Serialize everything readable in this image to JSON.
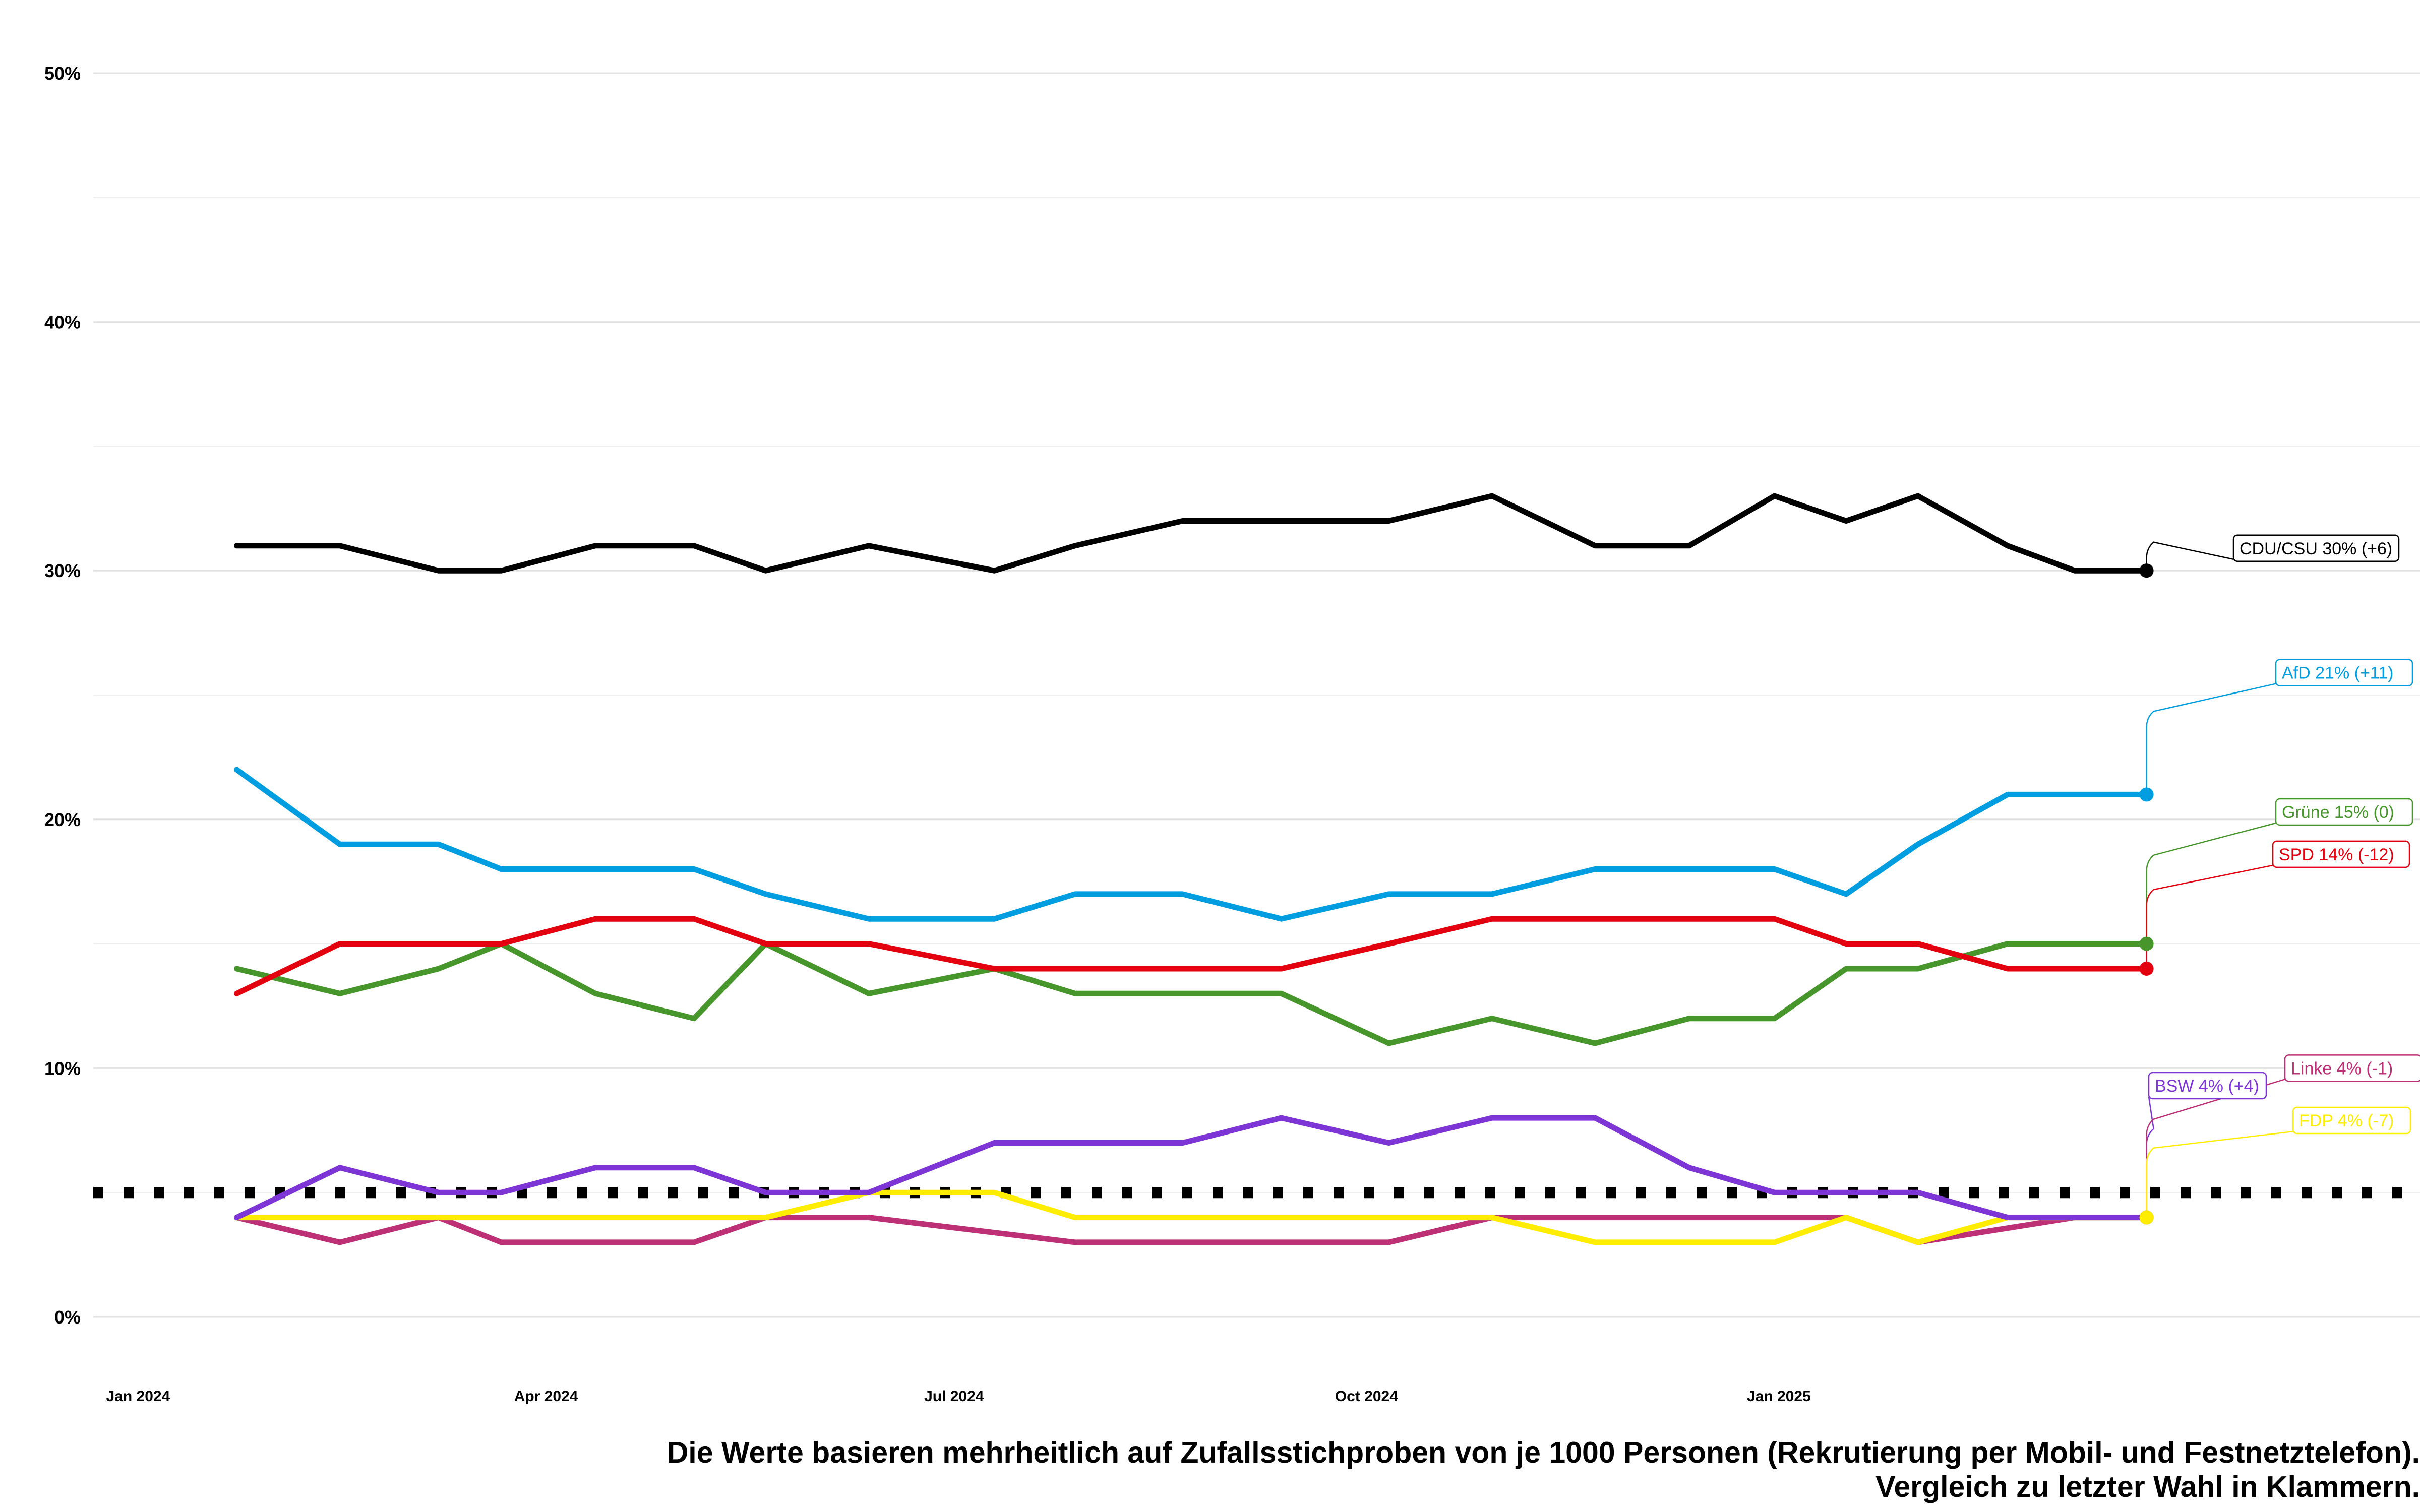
{
  "chart_data": {
    "type": "line",
    "x": [
      "2024-01-23",
      "2024-02-15",
      "2024-03-08",
      "2024-03-22",
      "2024-04-12",
      "2024-05-04",
      "2024-05-20",
      "2024-06-12",
      "2024-07-10",
      "2024-07-28",
      "2024-08-21",
      "2024-09-12",
      "2024-10-06",
      "2024-10-29",
      "2024-11-21",
      "2024-12-12",
      "2024-12-31",
      "2025-01-16",
      "2025-02-01",
      "2025-02-21",
      "2025-03-08",
      "2025-03-24"
    ],
    "series": [
      {
        "name": "CDU/CSU",
        "color": "#000000",
        "x": [
          "2024-01-23",
          "2024-02-15",
          "2024-03-08",
          "2024-03-22",
          "2024-04-12",
          "2024-05-04",
          "2024-05-20",
          "2024-06-12",
          "2024-07-10",
          "2024-07-28",
          "2024-08-21",
          "2024-09-12",
          "2024-10-06",
          "2024-10-29",
          "2024-11-21",
          "2024-12-12",
          "2024-12-31",
          "2025-01-16",
          "2025-02-01",
          "2025-02-21",
          "2025-03-08",
          "2025-03-24"
        ],
        "values": [
          31,
          31,
          30,
          30,
          31,
          31,
          30,
          31,
          30,
          31,
          32,
          32,
          32,
          33,
          31,
          31,
          33,
          32,
          33,
          31,
          30,
          30
        ]
      },
      {
        "name": "AfD",
        "color": "#009EE0",
        "x": [
          "2024-01-23",
          "2024-02-15",
          "2024-03-08",
          "2024-03-22",
          "2024-04-12",
          "2024-05-04",
          "2024-05-20",
          "2024-06-12",
          "2024-07-10",
          "2024-07-28",
          "2024-08-21",
          "2024-09-12",
          "2024-10-06",
          "2024-10-29",
          "2024-11-21",
          "2024-12-12",
          "2024-12-31",
          "2025-01-16",
          "2025-02-01",
          "2025-02-21",
          "2025-03-08",
          "2025-03-24"
        ],
        "values": [
          22,
          19,
          19,
          18,
          18,
          18,
          17,
          16,
          16,
          17,
          17,
          16,
          17,
          17,
          18,
          18,
          18,
          17,
          19,
          21,
          21,
          21
        ]
      },
      {
        "name": "Grüne",
        "color": "#46962B",
        "x": [
          "2024-01-23",
          "2024-02-15",
          "2024-03-08",
          "2024-03-22",
          "2024-04-12",
          "2024-05-04",
          "2024-05-20",
          "2024-06-12",
          "2024-07-10",
          "2024-07-28",
          "2024-08-21",
          "2024-09-12",
          "2024-10-06",
          "2024-10-29",
          "2024-11-21",
          "2024-12-12",
          "2024-12-31",
          "2025-01-16",
          "2025-02-01",
          "2025-02-21",
          "2025-03-08",
          "2025-03-24"
        ],
        "values": [
          14,
          13,
          14,
          15,
          13,
          12,
          15,
          13,
          14,
          13,
          13,
          13,
          11,
          12,
          11,
          12,
          12,
          14,
          14,
          15,
          15,
          15
        ]
      },
      {
        "name": "SPD",
        "color": "#E3000F",
        "x": [
          "2024-01-23",
          "2024-02-15",
          "2024-03-08",
          "2024-03-22",
          "2024-04-12",
          "2024-05-04",
          "2024-05-20",
          "2024-06-12",
          "2024-07-10",
          "2024-07-28",
          "2024-08-21",
          "2024-09-12",
          "2024-10-06",
          "2024-10-29",
          "2024-11-21",
          "2024-12-12",
          "2024-12-31",
          "2025-01-16",
          "2025-02-01",
          "2025-02-21",
          "2025-03-08",
          "2025-03-24"
        ],
        "values": [
          13,
          15,
          15,
          15,
          16,
          16,
          15,
          15,
          14,
          14,
          14,
          14,
          15,
          16,
          16,
          16,
          16,
          15,
          15,
          14,
          14,
          14
        ]
      },
      {
        "name": "BSW",
        "color": "#7D35D6",
        "x": [
          "2024-01-23",
          "2024-02-15",
          "2024-03-08",
          "2024-03-22",
          "2024-04-12",
          "2024-05-04",
          "2024-05-20",
          "2024-06-12",
          "2024-07-10",
          "2024-07-28",
          "2024-08-21",
          "2024-09-12",
          "2024-10-06",
          "2024-10-29",
          "2024-11-21",
          "2024-12-12",
          "2024-12-31",
          "2025-01-16",
          "2025-02-01",
          "2025-02-21",
          "2025-03-08",
          "2025-03-24"
        ],
        "values": [
          4,
          6,
          5,
          5,
          6,
          6,
          5,
          5,
          7,
          7,
          7,
          8,
          7,
          8,
          8,
          6,
          5,
          5,
          5,
          4,
          4,
          4
        ]
      },
      {
        "name": "Linke",
        "color": "#BE3075",
        "x": [
          "2024-01-23",
          "2024-02-15",
          "2024-03-08",
          "2024-03-22",
          "2024-04-12",
          "2024-05-04",
          "2024-05-20",
          "2024-06-12",
          "2024-07-28",
          "2024-08-21",
          "2024-09-12",
          "2024-10-06",
          "2024-10-29",
          "2024-11-21",
          "2024-12-12",
          "2024-12-31",
          "2025-01-16",
          "2025-02-01",
          "2025-03-08",
          "2025-03-24"
        ],
        "values": [
          4,
          3,
          4,
          3,
          3,
          3,
          4,
          4,
          3,
          3,
          3,
          3,
          4,
          4,
          4,
          4,
          4,
          3,
          4,
          4
        ]
      },
      {
        "name": "FDP",
        "color": "#FFED00",
        "x": [
          "2024-01-23",
          "2024-02-15",
          "2024-03-08",
          "2024-03-22",
          "2024-04-12",
          "2024-05-04",
          "2024-05-20",
          "2024-06-12",
          "2024-07-10",
          "2024-07-28",
          "2024-08-21",
          "2024-09-12",
          "2024-10-06",
          "2024-10-29",
          "2024-11-21",
          "2024-12-12",
          "2024-12-31",
          "2025-01-16",
          "2025-02-01",
          "2025-02-21",
          "2025-03-08",
          "2025-03-24"
        ],
        "values": [
          4,
          4,
          4,
          4,
          4,
          4,
          4,
          5,
          5,
          4,
          4,
          4,
          4,
          4,
          3,
          3,
          3,
          4,
          3,
          4,
          4,
          4
        ]
      }
    ],
    "end_labels": [
      {
        "series": "CDU/CSU",
        "text": "CDU/CSU 30% (+6)",
        "color": "#000000"
      },
      {
        "series": "AfD",
        "text": "AfD 21% (+11)",
        "color": "#009EE0"
      },
      {
        "series": "Grüne",
        "text": "Grüne 15% (0)",
        "color": "#46962B"
      },
      {
        "series": "SPD",
        "text": "SPD 14% (-12)",
        "color": "#E3000F"
      },
      {
        "series": "BSW",
        "text": "BSW 4% (+4)",
        "color": "#7D35D6"
      },
      {
        "series": "Linke",
        "text": "Linke 4% (-1)",
        "color": "#BE3075"
      },
      {
        "series": "FDP",
        "text": "FDP 4% (-7)",
        "color": "#FFED00"
      }
    ],
    "threshold": 5,
    "y_ticks": [
      "0%",
      "10%",
      "20%",
      "30%",
      "40%",
      "50%"
    ],
    "x_ticks": [
      {
        "date": "2024-01-01",
        "label": "Jan 2024"
      },
      {
        "date": "2024-04-01",
        "label": "Apr 2024"
      },
      {
        "date": "2024-07-01",
        "label": "Jul 2024"
      },
      {
        "date": "2024-10-01",
        "label": "Oct 2024"
      },
      {
        "date": "2025-01-01",
        "label": "Jan 2025"
      }
    ],
    "ylim": [
      0,
      50
    ],
    "xlim": [
      "2023-12-22",
      "2025-05-24"
    ],
    "grid": true,
    "legend": "none"
  },
  "caption": {
    "line1": "Die Werte basieren mehrheitlich auf Zufallsstichproben von je 1000 Personen (Rekrutierung per Mobil- und Festnetztelefon).",
    "line2": "Vergleich zu letzter Wahl in Klammern."
  }
}
